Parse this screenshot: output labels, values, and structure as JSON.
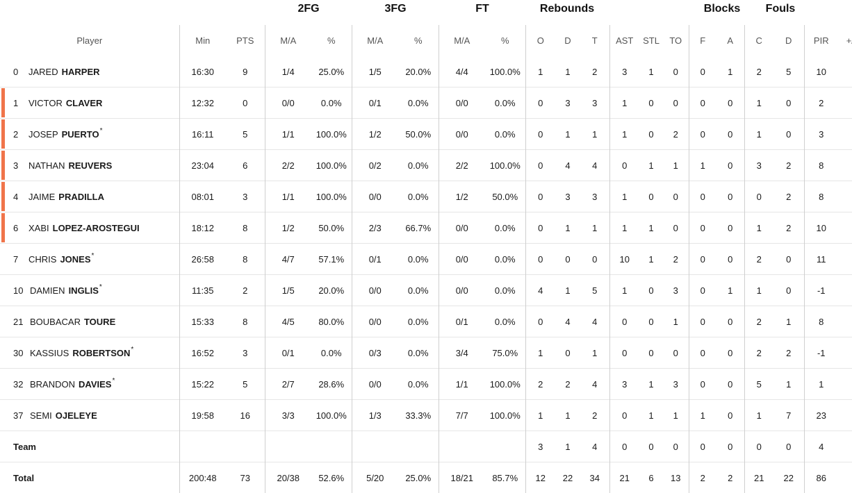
{
  "group_headers": {
    "fg2": "2FG",
    "fg3": "3FG",
    "ft": "FT",
    "rebounds": "Rebounds",
    "blocks": "Blocks",
    "fouls": "Fouls"
  },
  "columns": {
    "player": "Player",
    "min": "Min",
    "pts": "PTS",
    "fg2_ma": "M/A",
    "fg2_pct": "%",
    "fg3_ma": "M/A",
    "fg3_pct": "%",
    "ft_ma": "M/A",
    "ft_pct": "%",
    "reb_o": "O",
    "reb_d": "D",
    "reb_t": "T",
    "ast": "AST",
    "stl": "STL",
    "to": "TO",
    "blk_f": "F",
    "blk_a": "A",
    "foul_c": "C",
    "foul_d": "D",
    "pir": "PIR",
    "pm": "+/-"
  },
  "players": [
    {
      "num": "0",
      "first": "JARED",
      "last": "HARPER",
      "mark": "",
      "starter": false,
      "min": "16:30",
      "pts": "9",
      "fg2_ma": "1/4",
      "fg2_pct": "25.0%",
      "fg3_ma": "1/5",
      "fg3_pct": "20.0%",
      "ft_ma": "4/4",
      "ft_pct": "100.0%",
      "reb_o": "1",
      "reb_d": "1",
      "reb_t": "2",
      "ast": "3",
      "stl": "1",
      "to": "0",
      "blk_f": "0",
      "blk_a": "1",
      "foul_c": "2",
      "foul_d": "5",
      "pir": "10"
    },
    {
      "num": "1",
      "first": "VICTOR",
      "last": "CLAVER",
      "mark": "",
      "starter": true,
      "min": "12:32",
      "pts": "0",
      "fg2_ma": "0/0",
      "fg2_pct": "0.0%",
      "fg3_ma": "0/1",
      "fg3_pct": "0.0%",
      "ft_ma": "0/0",
      "ft_pct": "0.0%",
      "reb_o": "0",
      "reb_d": "3",
      "reb_t": "3",
      "ast": "1",
      "stl": "0",
      "to": "0",
      "blk_f": "0",
      "blk_a": "0",
      "foul_c": "1",
      "foul_d": "0",
      "pir": "2"
    },
    {
      "num": "2",
      "first": "JOSEP",
      "last": "PUERTO",
      "mark": "*",
      "starter": true,
      "min": "16:11",
      "pts": "5",
      "fg2_ma": "1/1",
      "fg2_pct": "100.0%",
      "fg3_ma": "1/2",
      "fg3_pct": "50.0%",
      "ft_ma": "0/0",
      "ft_pct": "0.0%",
      "reb_o": "0",
      "reb_d": "1",
      "reb_t": "1",
      "ast": "1",
      "stl": "0",
      "to": "2",
      "blk_f": "0",
      "blk_a": "0",
      "foul_c": "1",
      "foul_d": "0",
      "pir": "3"
    },
    {
      "num": "3",
      "first": "NATHAN",
      "last": "REUVERS",
      "mark": "",
      "starter": true,
      "min": "23:04",
      "pts": "6",
      "fg2_ma": "2/2",
      "fg2_pct": "100.0%",
      "fg3_ma": "0/2",
      "fg3_pct": "0.0%",
      "ft_ma": "2/2",
      "ft_pct": "100.0%",
      "reb_o": "0",
      "reb_d": "4",
      "reb_t": "4",
      "ast": "0",
      "stl": "1",
      "to": "1",
      "blk_f": "1",
      "blk_a": "0",
      "foul_c": "3",
      "foul_d": "2",
      "pir": "8"
    },
    {
      "num": "4",
      "first": "JAIME",
      "last": "PRADILLA",
      "mark": "",
      "starter": true,
      "min": "08:01",
      "pts": "3",
      "fg2_ma": "1/1",
      "fg2_pct": "100.0%",
      "fg3_ma": "0/0",
      "fg3_pct": "0.0%",
      "ft_ma": "1/2",
      "ft_pct": "50.0%",
      "reb_o": "0",
      "reb_d": "3",
      "reb_t": "3",
      "ast": "1",
      "stl": "0",
      "to": "0",
      "blk_f": "0",
      "blk_a": "0",
      "foul_c": "0",
      "foul_d": "2",
      "pir": "8"
    },
    {
      "num": "6",
      "first": "XABI",
      "last": "LOPEZ-AROSTEGUI",
      "mark": "",
      "starter": true,
      "min": "18:12",
      "pts": "8",
      "fg2_ma": "1/2",
      "fg2_pct": "50.0%",
      "fg3_ma": "2/3",
      "fg3_pct": "66.7%",
      "ft_ma": "0/0",
      "ft_pct": "0.0%",
      "reb_o": "0",
      "reb_d": "1",
      "reb_t": "1",
      "ast": "1",
      "stl": "1",
      "to": "0",
      "blk_f": "0",
      "blk_a": "0",
      "foul_c": "1",
      "foul_d": "2",
      "pir": "10"
    },
    {
      "num": "7",
      "first": "CHRIS",
      "last": "JONES",
      "mark": "*",
      "starter": false,
      "min": "26:58",
      "pts": "8",
      "fg2_ma": "4/7",
      "fg2_pct": "57.1%",
      "fg3_ma": "0/1",
      "fg3_pct": "0.0%",
      "ft_ma": "0/0",
      "ft_pct": "0.0%",
      "reb_o": "0",
      "reb_d": "0",
      "reb_t": "0",
      "ast": "10",
      "stl": "1",
      "to": "2",
      "blk_f": "0",
      "blk_a": "0",
      "foul_c": "2",
      "foul_d": "0",
      "pir": "11"
    },
    {
      "num": "10",
      "first": "DAMIEN",
      "last": "INGLIS",
      "mark": "*",
      "starter": false,
      "min": "11:35",
      "pts": "2",
      "fg2_ma": "1/5",
      "fg2_pct": "20.0%",
      "fg3_ma": "0/0",
      "fg3_pct": "0.0%",
      "ft_ma": "0/0",
      "ft_pct": "0.0%",
      "reb_o": "4",
      "reb_d": "1",
      "reb_t": "5",
      "ast": "1",
      "stl": "0",
      "to": "3",
      "blk_f": "0",
      "blk_a": "1",
      "foul_c": "1",
      "foul_d": "0",
      "pir": "-1"
    },
    {
      "num": "21",
      "first": "BOUBACAR",
      "last": "TOURE",
      "mark": "",
      "starter": false,
      "min": "15:33",
      "pts": "8",
      "fg2_ma": "4/5",
      "fg2_pct": "80.0%",
      "fg3_ma": "0/0",
      "fg3_pct": "0.0%",
      "ft_ma": "0/1",
      "ft_pct": "0.0%",
      "reb_o": "0",
      "reb_d": "4",
      "reb_t": "4",
      "ast": "0",
      "stl": "0",
      "to": "1",
      "blk_f": "0",
      "blk_a": "0",
      "foul_c": "2",
      "foul_d": "1",
      "pir": "8"
    },
    {
      "num": "30",
      "first": "KASSIUS",
      "last": "ROBERTSON",
      "mark": "*",
      "starter": false,
      "min": "16:52",
      "pts": "3",
      "fg2_ma": "0/1",
      "fg2_pct": "0.0%",
      "fg3_ma": "0/3",
      "fg3_pct": "0.0%",
      "ft_ma": "3/4",
      "ft_pct": "75.0%",
      "reb_o": "1",
      "reb_d": "0",
      "reb_t": "1",
      "ast": "0",
      "stl": "0",
      "to": "0",
      "blk_f": "0",
      "blk_a": "0",
      "foul_c": "2",
      "foul_d": "2",
      "pir": "-1"
    },
    {
      "num": "32",
      "first": "BRANDON",
      "last": "DAVIES",
      "mark": "*",
      "starter": false,
      "min": "15:22",
      "pts": "5",
      "fg2_ma": "2/7",
      "fg2_pct": "28.6%",
      "fg3_ma": "0/0",
      "fg3_pct": "0.0%",
      "ft_ma": "1/1",
      "ft_pct": "100.0%",
      "reb_o": "2",
      "reb_d": "2",
      "reb_t": "4",
      "ast": "3",
      "stl": "1",
      "to": "3",
      "blk_f": "0",
      "blk_a": "0",
      "foul_c": "5",
      "foul_d": "1",
      "pir": "1"
    },
    {
      "num": "37",
      "first": "SEMI",
      "last": "OJELEYE",
      "mark": "",
      "starter": false,
      "min": "19:58",
      "pts": "16",
      "fg2_ma": "3/3",
      "fg2_pct": "100.0%",
      "fg3_ma": "1/3",
      "fg3_pct": "33.3%",
      "ft_ma": "7/7",
      "ft_pct": "100.0%",
      "reb_o": "1",
      "reb_d": "1",
      "reb_t": "2",
      "ast": "0",
      "stl": "1",
      "to": "1",
      "blk_f": "1",
      "blk_a": "0",
      "foul_c": "1",
      "foul_d": "7",
      "pir": "23"
    }
  ],
  "team": {
    "label": "Team",
    "reb_o": "3",
    "reb_d": "1",
    "reb_t": "4",
    "ast": "0",
    "stl": "0",
    "to": "0",
    "blk_f": "0",
    "blk_a": "0",
    "foul_c": "0",
    "foul_d": "0",
    "pir": "4"
  },
  "total": {
    "label": "Total",
    "min": "200:48",
    "pts": "73",
    "fg2_ma": "20/38",
    "fg2_pct": "52.6%",
    "fg3_ma": "5/20",
    "fg3_pct": "25.0%",
    "ft_ma": "18/21",
    "ft_pct": "85.7%",
    "reb_o": "12",
    "reb_d": "22",
    "reb_t": "34",
    "ast": "21",
    "stl": "6",
    "to": "13",
    "blk_f": "2",
    "blk_a": "2",
    "foul_c": "21",
    "foul_d": "22",
    "pir": "86"
  }
}
